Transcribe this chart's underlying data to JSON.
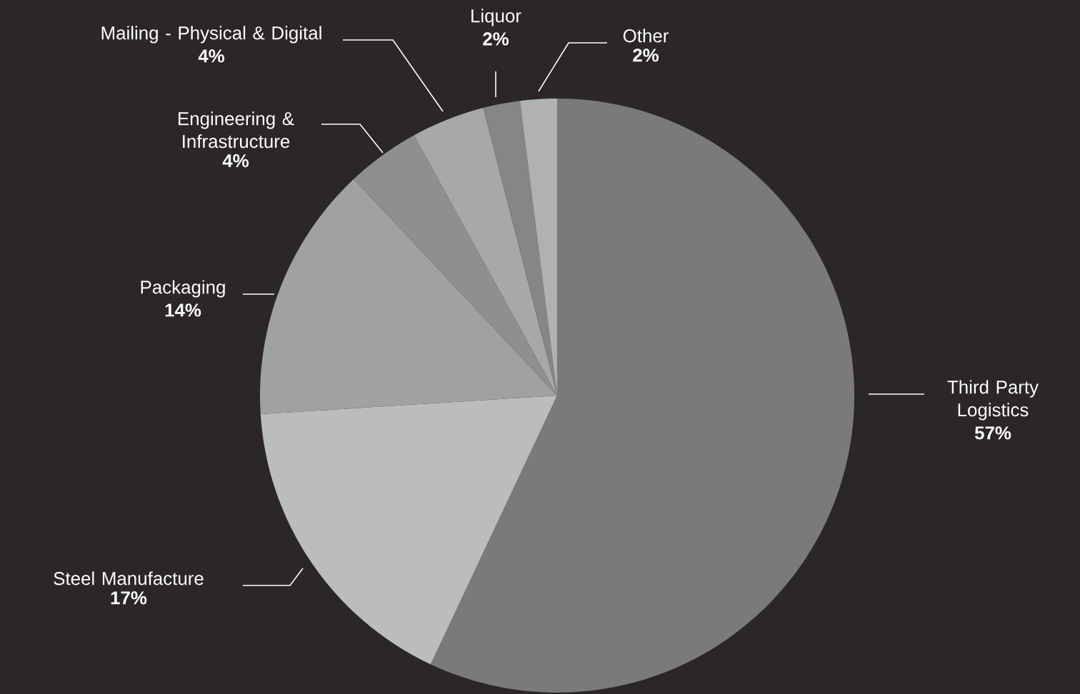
{
  "chart_data": {
    "type": "pie",
    "categories": [
      "Third Party Logistics",
      "Steel Manufacture",
      "Packaging",
      "Engineering & Infrastructure",
      "Mailing - Physical & Digital",
      "Liquor",
      "Other"
    ],
    "values": [
      57,
      17,
      14,
      4,
      4,
      2,
      2
    ],
    "value_labels": [
      "57%",
      "17%",
      "14%",
      "4%",
      "4%",
      "2%",
      "2%"
    ],
    "colors": [
      "#7a7a7a",
      "#bbbcbd",
      "#a0a1a2",
      "#8e8f90",
      "#a7a8a9",
      "#858688",
      "#b0b1b2"
    ]
  }
}
